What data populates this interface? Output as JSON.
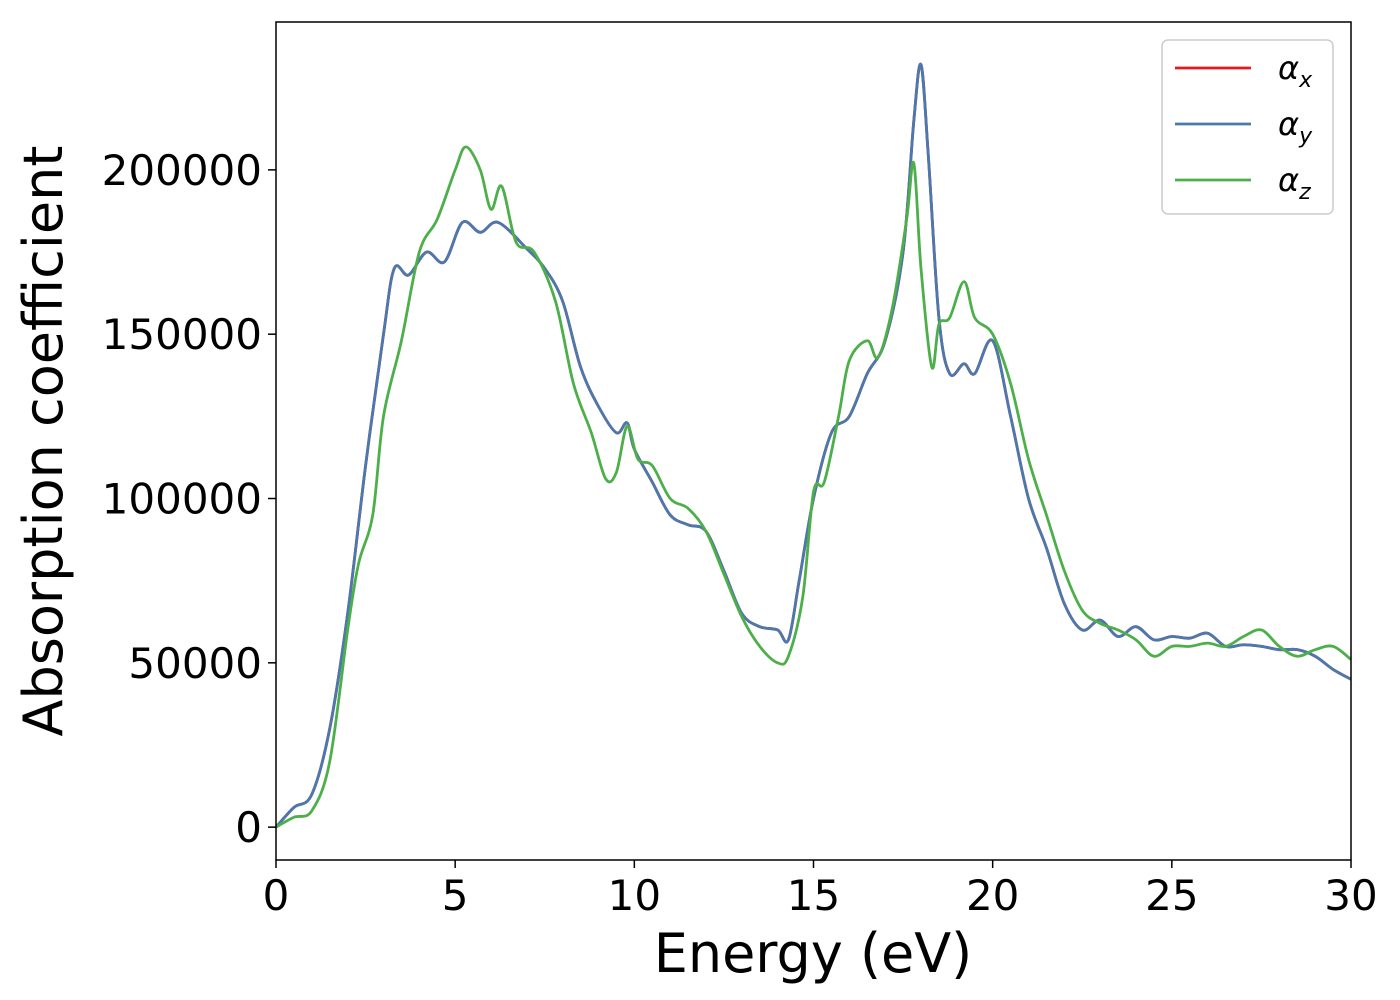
{
  "chart_data": {
    "type": "line",
    "title": "",
    "xlabel": "Energy (eV)",
    "ylabel": "Absorption coefficient",
    "xlim": [
      0,
      30
    ],
    "ylim": [
      -10000,
      245000
    ],
    "xticks": [
      0,
      5,
      10,
      15,
      20,
      25,
      30
    ],
    "yticks": [
      0,
      50000,
      100000,
      150000,
      200000
    ],
    "grid": false,
    "legend_position": "top-right",
    "series": [
      {
        "name": "α",
        "subscript": "x",
        "color": "#e41a1c",
        "x": [
          0,
          0.5,
          1,
          1.5,
          2,
          2.5,
          3,
          3.3,
          3.7,
          4.2,
          4.7,
          5.2,
          5.7,
          6.2,
          7,
          7.5,
          8,
          8.5,
          9,
          9.5,
          9.8,
          10,
          10.5,
          11,
          11.5,
          12,
          12.5,
          13,
          13.5,
          14,
          14.3,
          14.6,
          15,
          15.5,
          16,
          16.5,
          17,
          17.5,
          17.8,
          18,
          18.2,
          18.5,
          18.8,
          19.2,
          19.5,
          20,
          20.5,
          21,
          21.5,
          22,
          22.5,
          23,
          23.5,
          24,
          24.5,
          25,
          25.5,
          26,
          26.5,
          27,
          27.5,
          28,
          28.5,
          29,
          29.5,
          30
        ],
        "y": [
          0,
          6000,
          10000,
          30000,
          65000,
          110000,
          150000,
          170000,
          168000,
          175000,
          172000,
          184000,
          181000,
          184000,
          176000,
          170000,
          160000,
          140000,
          128000,
          120000,
          123000,
          115000,
          105000,
          95000,
          92000,
          90000,
          78000,
          65000,
          61000,
          60000,
          57000,
          75000,
          100000,
          120000,
          125000,
          138000,
          148000,
          175000,
          215000,
          232000,
          205000,
          155000,
          138000,
          141000,
          138000,
          148000,
          125000,
          100000,
          85000,
          68000,
          60000,
          63000,
          58000,
          61000,
          57000,
          58000,
          57500,
          59000,
          55000,
          55500,
          55000,
          54000,
          54000,
          52000,
          48000,
          45000
        ]
      },
      {
        "name": "α",
        "subscript": "y",
        "color": "#4a79ad",
        "x": [
          0,
          0.5,
          1,
          1.5,
          2,
          2.5,
          3,
          3.3,
          3.7,
          4.2,
          4.7,
          5.2,
          5.7,
          6.2,
          7,
          7.5,
          8,
          8.5,
          9,
          9.5,
          9.8,
          10,
          10.5,
          11,
          11.5,
          12,
          12.5,
          13,
          13.5,
          14,
          14.3,
          14.6,
          15,
          15.5,
          16,
          16.5,
          17,
          17.5,
          17.8,
          18,
          18.2,
          18.5,
          18.8,
          19.2,
          19.5,
          20,
          20.5,
          21,
          21.5,
          22,
          22.5,
          23,
          23.5,
          24,
          24.5,
          25,
          25.5,
          26,
          26.5,
          27,
          27.5,
          28,
          28.5,
          29,
          29.5,
          30
        ],
        "y": [
          0,
          6000,
          10000,
          30000,
          65000,
          110000,
          150000,
          170000,
          168000,
          175000,
          172000,
          184000,
          181000,
          184000,
          176000,
          170000,
          160000,
          140000,
          128000,
          120000,
          123000,
          115000,
          105000,
          95000,
          92000,
          90000,
          78000,
          65000,
          61000,
          60000,
          57000,
          75000,
          100000,
          120000,
          125000,
          138000,
          148000,
          175000,
          215000,
          232000,
          205000,
          155000,
          138000,
          141000,
          138000,
          148000,
          125000,
          100000,
          85000,
          68000,
          60000,
          63000,
          58000,
          61000,
          57000,
          58000,
          57500,
          59000,
          55000,
          55500,
          55000,
          54000,
          54000,
          52000,
          48000,
          45000
        ]
      },
      {
        "name": "α",
        "subscript": "z",
        "color": "#4daf4a",
        "x": [
          0,
          0.5,
          1,
          1.5,
          2,
          2.3,
          2.7,
          3,
          3.5,
          4,
          4.5,
          5,
          5.3,
          5.7,
          6,
          6.3,
          6.7,
          7.2,
          7.8,
          8.3,
          8.8,
          9.2,
          9.5,
          9.8,
          10.1,
          10.5,
          11,
          11.5,
          12,
          12.5,
          13,
          13.5,
          14,
          14.3,
          14.7,
          15,
          15.3,
          15.7,
          16,
          16.5,
          16.8,
          17.2,
          17.6,
          17.8,
          18,
          18.3,
          18.5,
          18.8,
          19.2,
          19.5,
          20,
          20.5,
          21,
          21.5,
          22,
          22.5,
          23,
          23.5,
          24,
          24.5,
          25,
          25.5,
          26,
          26.5,
          27,
          27.5,
          28,
          28.5,
          29,
          29.5,
          30
        ],
        "y": [
          0,
          3000,
          5000,
          20000,
          60000,
          80000,
          95000,
          125000,
          148000,
          175000,
          185000,
          200000,
          207000,
          200000,
          188000,
          195000,
          178000,
          175000,
          160000,
          135000,
          120000,
          106000,
          108000,
          122000,
          112000,
          110000,
          100000,
          97000,
          90000,
          77000,
          64000,
          55000,
          50000,
          52000,
          70000,
          102000,
          105000,
          125000,
          142000,
          148000,
          143000,
          158000,
          185000,
          202000,
          170000,
          140000,
          153000,
          155000,
          166000,
          155000,
          150000,
          135000,
          112000,
          95000,
          78000,
          66000,
          62000,
          60000,
          57000,
          52000,
          55000,
          55000,
          56000,
          55000,
          58000,
          60000,
          55000,
          52000,
          54000,
          55000,
          51000
        ]
      }
    ]
  }
}
